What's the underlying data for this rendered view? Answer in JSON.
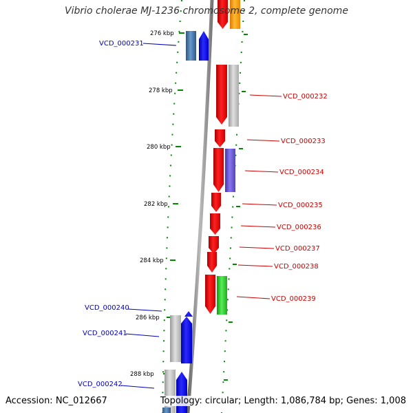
{
  "title": "Vibrio cholerae MJ-1236 chromosome 2, complete genome",
  "footer": {
    "accession": "Accession: NC_012667",
    "summary": "Topology: circular; Length: 1,086,784 bp; Genes: 1,008"
  },
  "ticks": [
    "276 kbp",
    "278 kbp",
    "280 kbp",
    "282 kbp",
    "284 kbp",
    "286 kbp",
    "288 kbp"
  ],
  "genes_right": [
    "VCD_000232",
    "VCD_000233",
    "VCD_000234",
    "VCD_000235",
    "VCD_000236",
    "VCD_000237",
    "VCD_000238",
    "VCD_000239"
  ],
  "genes_left": [
    "VCD_000231",
    "VCD_000240",
    "VCD_000241",
    "VCD_000242"
  ],
  "colors": {
    "forward_cds": "#0000ee",
    "reverse_cds": "#ee0000",
    "gray_feature": "#bbbbbb",
    "blue_gray_feature": "#4477aa",
    "purple_feature": "#6655cc",
    "green_feature": "#22cc22",
    "orange_feature": "#ff9900",
    "backbone": "#888888",
    "dotted_ring": "#008800",
    "label_right": "#cc0000",
    "label_left": "#0000bb"
  }
}
